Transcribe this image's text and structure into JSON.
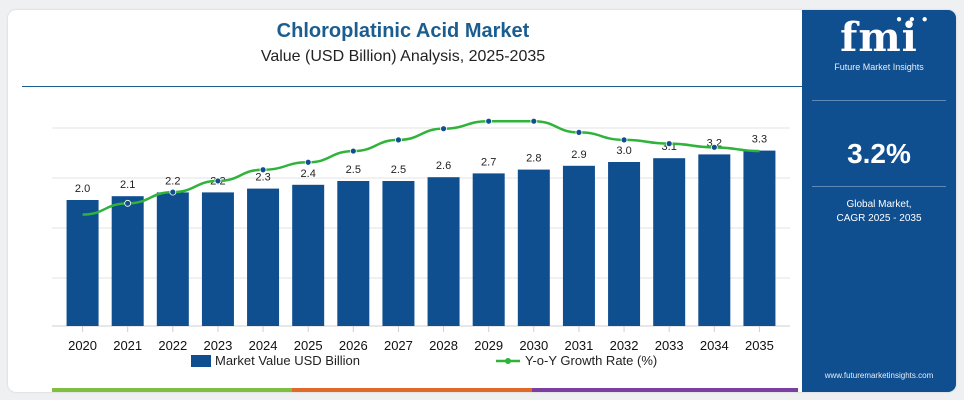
{
  "chart_data": {
    "type": "bar",
    "title": "Chloroplatinic Acid Market",
    "subtitle": "Value (USD Billion) Analysis, 2025-2035",
    "categories": [
      "2020",
      "2021",
      "2022",
      "2023",
      "2024",
      "2025",
      "2026",
      "2027",
      "2028",
      "2029",
      "2030",
      "2031",
      "2032",
      "2033",
      "2034",
      "2035"
    ],
    "series": [
      {
        "name": "Market Value USD Billion",
        "type": "bar",
        "color": "#0f4e8f",
        "values": [
          2.0,
          2.1,
          2.2,
          2.2,
          2.3,
          2.4,
          2.5,
          2.5,
          2.6,
          2.7,
          2.8,
          2.9,
          3.0,
          3.1,
          3.2,
          3.3
        ]
      },
      {
        "name": "Y-o-Y Growth Rate (%)",
        "type": "line",
        "color": "#2fb33a",
        "values": [
          2.2,
          2.5,
          2.8,
          3.1,
          3.4,
          3.6,
          3.9,
          4.2,
          4.5,
          4.7,
          4.7,
          4.4,
          4.2,
          4.1,
          4.0,
          3.9
        ]
      }
    ],
    "value_labels": [
      "2.0",
      "2.1",
      "2.2",
      "2.2",
      "2.3",
      "2.4",
      "2.5",
      "2.5",
      "2.6",
      "2.7",
      "2.8",
      "2.9",
      "3.0",
      "3.1",
      "3.2",
      "3.3"
    ],
    "legend_position": "bottom",
    "grid": true
  },
  "sidebar": {
    "logo": "fmi",
    "logo_subtitle": "Future Market Insights",
    "cagr_value": "3.2%",
    "cagr_label_line1": "Global Market,",
    "cagr_label_line2": "CAGR 2025 - 2035",
    "url": "www.futuremarketinsights.com",
    "background_color": "#0f4e8f"
  },
  "footer_colors": [
    "#7fbf3f",
    "#e0692b",
    "#7a3fa0"
  ]
}
